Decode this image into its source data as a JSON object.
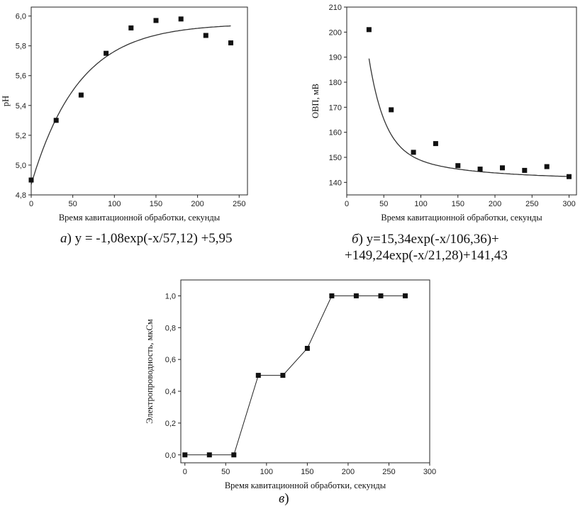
{
  "chart_data": [
    {
      "id": "a",
      "type": "scatter",
      "caption_letter": "а",
      "caption_formula": ") y = -1,08exp(-x/57,12) +5,95",
      "xlabel": "Время кавитационной обработки, секунды",
      "ylabel": "pH",
      "xlim": [
        0,
        260
      ],
      "ylim": [
        4.8,
        6.06
      ],
      "xticks": [
        0,
        50,
        100,
        150,
        200,
        250
      ],
      "xtick_labels": [
        "0",
        "50",
        "100",
        "150",
        "200",
        "250"
      ],
      "yticks": [
        4.8,
        5.0,
        5.2,
        5.4,
        5.6,
        5.8,
        6.0
      ],
      "ytick_labels": [
        "4,8",
        "5,0",
        "5,2",
        "5,4",
        "5,6",
        "5,8",
        "6,0"
      ],
      "x": [
        0,
        30,
        60,
        90,
        120,
        150,
        180,
        210,
        240
      ],
      "y": [
        4.9,
        5.3,
        5.47,
        5.75,
        5.92,
        5.97,
        5.98,
        5.87,
        5.82
      ],
      "fit": {
        "A": -1.08,
        "t": 57.12,
        "y0": 5.95,
        "x_range": [
          0,
          240
        ]
      },
      "grid": false
    },
    {
      "id": "b",
      "type": "scatter",
      "caption_letter": "б",
      "caption_formula": ") y=15,34exp(-x/106,36)+",
      "caption_line2": "+149,24exp(-x/21,28)+141,43",
      "xlabel": "Время кавитационной обработки, секунды",
      "ylabel": "ОВП, мВ",
      "xlim": [
        0,
        310
      ],
      "ylim": [
        135,
        210
      ],
      "xticks": [
        0,
        50,
        100,
        150,
        200,
        250,
        300
      ],
      "xtick_labels": [
        "0",
        "50",
        "100",
        "150",
        "200",
        "250",
        "300"
      ],
      "yticks": [
        140,
        150,
        160,
        170,
        180,
        190,
        200,
        210
      ],
      "ytick_labels": [
        "140",
        "150",
        "160",
        "170",
        "180",
        "190",
        "200",
        "210"
      ],
      "x": [
        30,
        60,
        90,
        120,
        150,
        180,
        210,
        240,
        270,
        300
      ],
      "y": [
        201,
        169,
        152,
        155.5,
        146.7,
        145.3,
        145.8,
        144.8,
        146.3,
        142.3
      ],
      "fit": {
        "A1": 15.34,
        "t1": 106.36,
        "A2": 149.24,
        "t2": 21.28,
        "y0": 141.43,
        "x_range": [
          30,
          300
        ]
      },
      "grid": false
    },
    {
      "id": "c",
      "type": "line",
      "caption_letter": "в",
      "caption_formula": ")",
      "xlabel": "Время кавитационной обработки, секунды",
      "ylabel": "Электропроводность, мкСм",
      "xlim": [
        -5,
        300
      ],
      "ylim": [
        -0.05,
        1.1
      ],
      "xticks": [
        0,
        50,
        100,
        150,
        200,
        250,
        300
      ],
      "xtick_labels": [
        "0",
        "50",
        "100",
        "150",
        "200",
        "250",
        "300"
      ],
      "yticks": [
        0.0,
        0.2,
        0.4,
        0.6,
        0.8,
        1.0
      ],
      "ytick_labels": [
        "0,0",
        "0,2",
        "0,4",
        "0,6",
        "0,8",
        "1,0"
      ],
      "x": [
        0,
        30,
        60,
        90,
        120,
        150,
        180,
        210,
        240,
        270
      ],
      "y": [
        0,
        0,
        0,
        0.5,
        0.5,
        0.67,
        1.0,
        1.0,
        1.0,
        1.0
      ],
      "grid": false
    }
  ]
}
